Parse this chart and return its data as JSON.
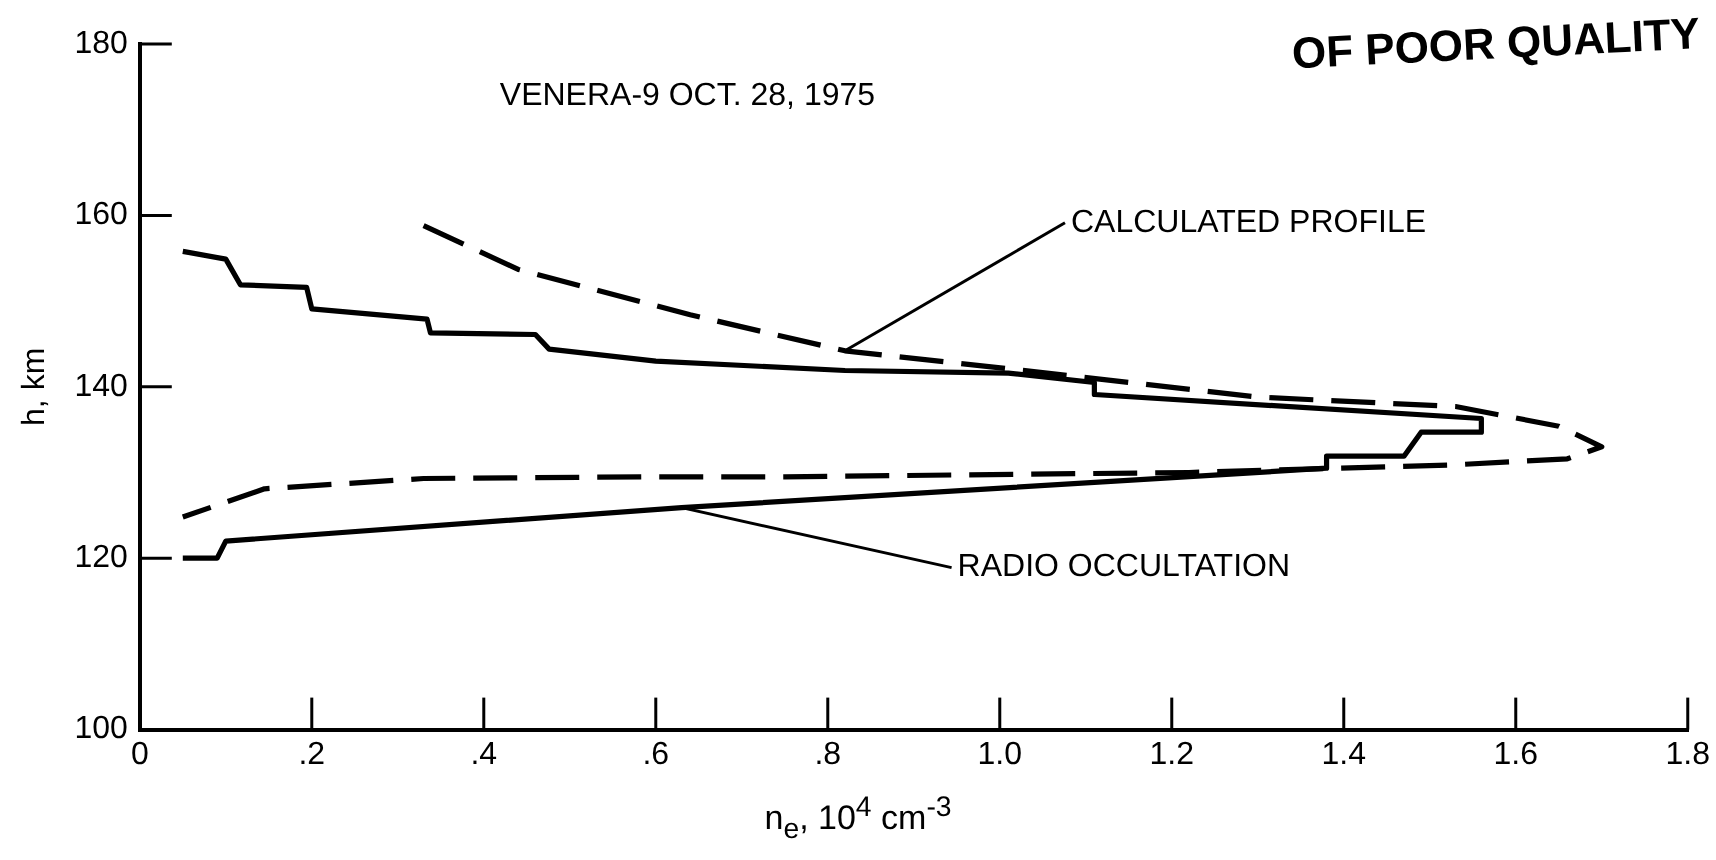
{
  "chart_data": {
    "type": "line",
    "xlabel": "n$_{e}$, 10$^{4}$ cm$^{-3}$",
    "ylabel": "h, km",
    "annotations": [
      "VENERA-9 OCT. 28, 1975",
      "OF POOR QUALITY"
    ],
    "xlim": [
      0,
      1.8
    ],
    "ylim": [
      100,
      180
    ],
    "xticks": [
      0,
      {
        "value": 0.2,
        "label": ".2"
      },
      {
        "value": 0.4,
        "label": ".4"
      },
      {
        "value": 0.6,
        "label": ".6"
      },
      {
        "value": 0.8,
        "label": ".8"
      },
      {
        "value": 1.0,
        "label": "1.0"
      },
      1.2,
      1.4,
      1.6,
      1.8
    ],
    "yticks": [
      100,
      120,
      140,
      160,
      180
    ],
    "grid": false,
    "legend": false,
    "marker": "none",
    "series": [
      {
        "name": "CALCULATED PROFILE",
        "color": "#000000",
        "line_style": "dashed",
        "x": [
          0.33,
          0.44,
          0.64,
          0.82,
          1.01,
          1.3,
          1.53,
          1.65,
          1.7,
          1.66,
          1.53,
          1.22,
          0.75,
          0.6,
          0.33,
          0.145,
          0.05
        ],
        "values": [
          158.8,
          153.7,
          148.4,
          144.2,
          142.1,
          138.8,
          137.7,
          135.4,
          133,
          131.6,
          130.9,
          130,
          129.5,
          129.5,
          129.3,
          128.1,
          124.8
        ]
      },
      {
        "name": "RADIO OCCULTATION",
        "color": "#000000",
        "line_style": "solid",
        "x": [
          0.05,
          0.1,
          0.117,
          0.194,
          0.2,
          0.334,
          0.338,
          0.46,
          0.476,
          0.6,
          0.82,
          1.01,
          1.11,
          1.11,
          1.56,
          1.56,
          1.49,
          1.47,
          1.38,
          1.38,
          0.63,
          0.1,
          0.09,
          0.05
        ],
        "values": [
          155.8,
          154.9,
          151.9,
          151.6,
          149.1,
          147.9,
          146.3,
          146.1,
          144.4,
          143,
          141.9,
          141.6,
          140.5,
          139.1,
          136.3,
          134.7,
          134.7,
          131.9,
          131.9,
          130.5,
          125.9,
          122,
          120,
          120
        ]
      }
    ]
  }
}
